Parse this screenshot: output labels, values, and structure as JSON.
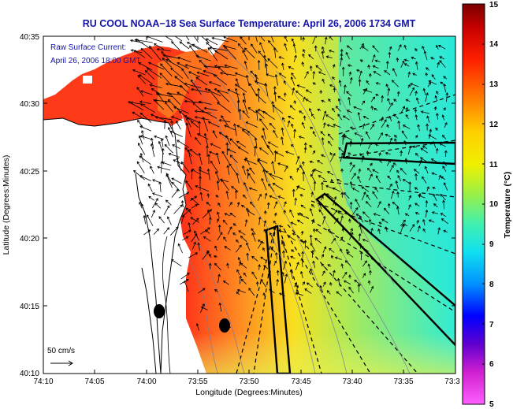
{
  "figure": {
    "title": "RU COOL  NOAA−18 Sea Surface Temperature:  April 26, 2006 1734 GMT",
    "overlay_label_1": "Raw Surface Current:",
    "overlay_label_2": "April 26, 2006 18:00 GMT",
    "scale_label": "50 cm/s",
    "xlabel": "Longitude (Degrees:Minutes)",
    "ylabel": "Latitude (Degrees:Minutes)",
    "colorbar_label": "Temperature (°C)"
  },
  "axes": {
    "x_ticks": [
      "74:10",
      "74:05",
      "74:00",
      "73:55",
      "73:50",
      "73:45",
      "73:40",
      "73:35",
      "73:3"
    ],
    "y_ticks": [
      "40:35",
      "40:30",
      "40:25",
      "40:20",
      "40:15",
      "40:10"
    ],
    "colorbar_ticks": [
      "15",
      "14",
      "13",
      "12",
      "11",
      "10",
      "9",
      "8",
      "7",
      "6",
      "5"
    ]
  },
  "colors": {
    "title_blue": "#1414a8",
    "land": "#ffffff",
    "vector": "#000000",
    "contour": "#7a7a9a"
  },
  "chart_data": {
    "type": "heatmap",
    "title": "RU COOL  NOAA−18 Sea Surface Temperature:  April 26, 2006 1734 GMT",
    "xlabel": "Longitude (Degrees:Minutes)",
    "ylabel": "Latitude (Degrees:Minutes)",
    "colorbar_label": "Temperature (°C)",
    "colorbar_range": [
      5,
      15
    ],
    "legend": "right"
  }
}
